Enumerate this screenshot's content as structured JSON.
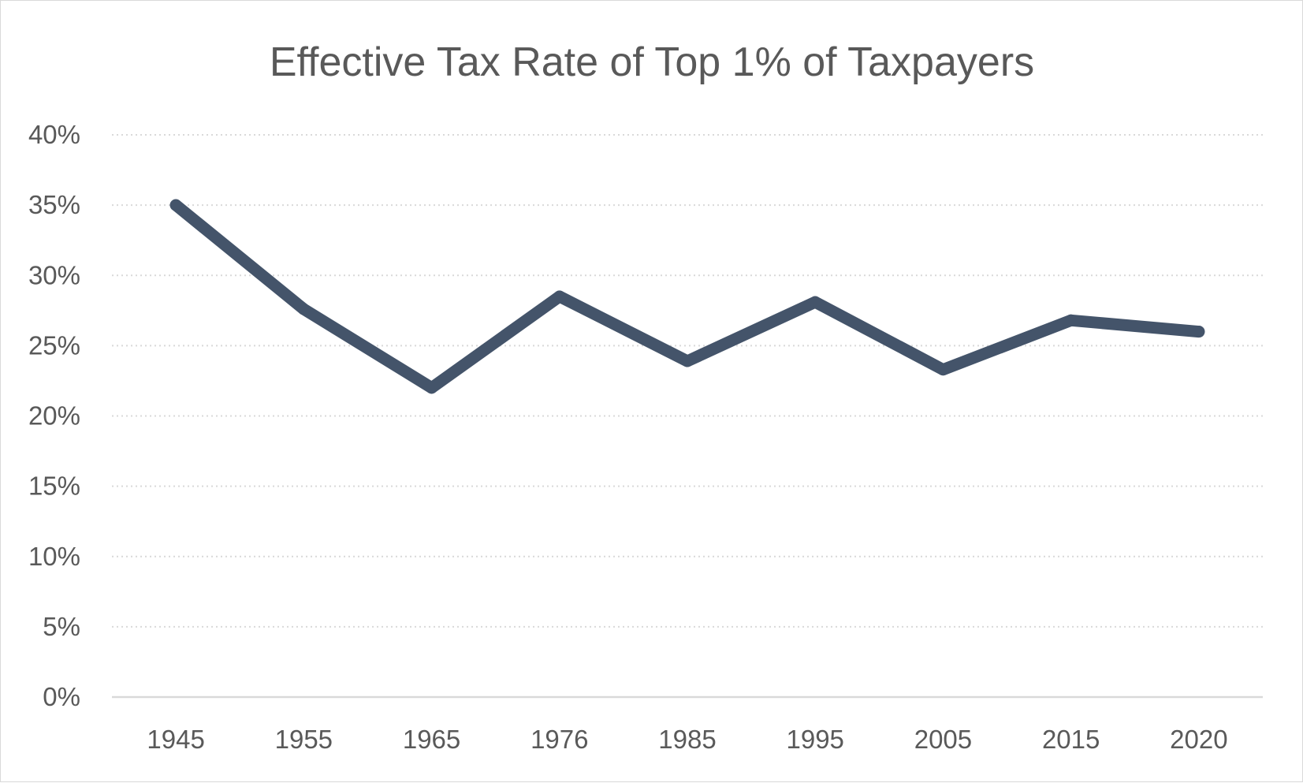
{
  "chart_data": {
    "type": "line",
    "title": "Effective Tax Rate of Top 1% of Taxpayers",
    "xlabel": "",
    "ylabel": "",
    "categories": [
      "1945",
      "1955",
      "1965",
      "1976",
      "1985",
      "1995",
      "2005",
      "2015",
      "2020"
    ],
    "series": [
      {
        "name": "Effective Tax Rate",
        "values": [
          35.0,
          27.6,
          22.0,
          28.5,
          23.9,
          28.1,
          23.3,
          26.8,
          26.0
        ]
      }
    ],
    "ylim": [
      0,
      40
    ],
    "ytick_values": [
      0,
      5,
      10,
      15,
      20,
      25,
      30,
      35,
      40
    ],
    "ytick_labels": [
      "0%",
      "5%",
      "10%",
      "15%",
      "20%",
      "25%",
      "30%",
      "35%",
      "40%"
    ],
    "grid": true,
    "legend": "none",
    "colors": {
      "series": "#44546a",
      "grid": "#d9d9d9",
      "text": "#595959"
    }
  }
}
